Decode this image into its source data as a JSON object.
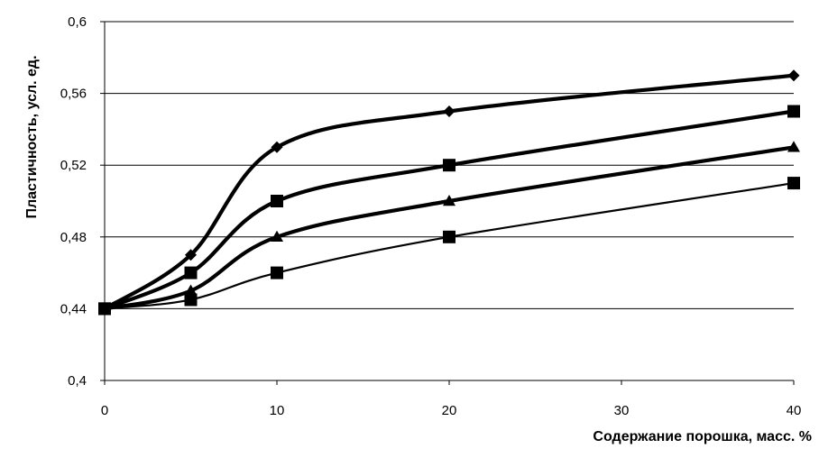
{
  "chart_data": {
    "type": "line",
    "xlabel": "Содержание порошка, масс. %",
    "ylabel": "Пластичность, усл. ед.",
    "xlim": [
      0,
      40
    ],
    "ylim": [
      0.4,
      0.6
    ],
    "x_ticks": [
      0,
      10,
      20,
      30,
      40
    ],
    "x_tick_labels": [
      "0",
      "10",
      "20",
      "30",
      "40"
    ],
    "y_ticks": [
      0.4,
      0.44,
      0.48,
      0.52,
      0.56,
      0.6
    ],
    "y_tick_labels": [
      "0,4",
      "0,44",
      "0,48",
      "0,52",
      "0,56",
      "0,6"
    ],
    "grid": "horizontal",
    "legend": "none",
    "line_color": "#000000",
    "series": [
      {
        "marker": "diamond",
        "weight": "bold",
        "x": [
          0,
          5,
          10,
          20,
          40
        ],
        "y": [
          0.44,
          0.47,
          0.53,
          0.55,
          0.57
        ]
      },
      {
        "marker": "square",
        "weight": "bold",
        "x": [
          0,
          5,
          10,
          20,
          40
        ],
        "y": [
          0.44,
          0.46,
          0.5,
          0.52,
          0.55
        ]
      },
      {
        "marker": "triangle",
        "weight": "bold",
        "x": [
          0,
          5,
          10,
          20,
          40
        ],
        "y": [
          0.44,
          0.45,
          0.48,
          0.5,
          0.53
        ]
      },
      {
        "marker": "square",
        "weight": "thin",
        "x": [
          0,
          5,
          10,
          20,
          40
        ],
        "y": [
          0.44,
          0.445,
          0.46,
          0.48,
          0.51
        ]
      }
    ]
  }
}
